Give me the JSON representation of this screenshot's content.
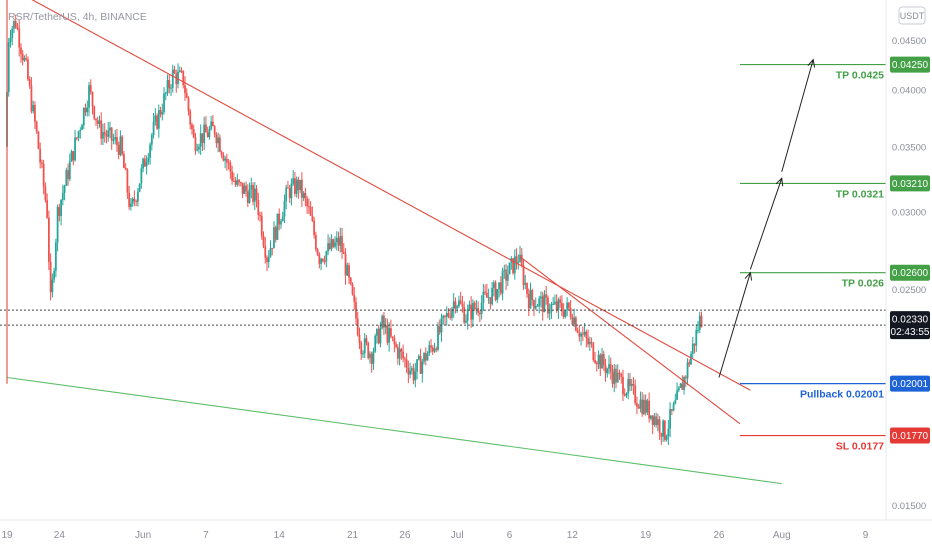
{
  "chart_data": {
    "type": "candlestick",
    "symbol_line": "RSR/TetherUS, 4h, BINANCE",
    "currency_badge": "USDT",
    "price_scale": "log",
    "ylim": [
      0.0145,
      0.0495
    ],
    "x_date_range": [
      "2021-05-19",
      "2021-08-10"
    ],
    "y_ticks": [
      "0.04500",
      "0.04000",
      "0.03500",
      "0.03000",
      "0.02500",
      "0.02000",
      "0.01500"
    ],
    "x_ticks": [
      {
        "label": "19",
        "date": "2021-05-19"
      },
      {
        "label": "24",
        "date": "2021-05-24"
      },
      {
        "label": "Jun",
        "date": "2021-06-01"
      },
      {
        "label": "7",
        "date": "2021-06-07"
      },
      {
        "label": "14",
        "date": "2021-06-14"
      },
      {
        "label": "21",
        "date": "2021-06-21"
      },
      {
        "label": "26",
        "date": "2021-06-26"
      },
      {
        "label": "Jul",
        "date": "2021-07-01"
      },
      {
        "label": "6",
        "date": "2021-07-06"
      },
      {
        "label": "12",
        "date": "2021-07-12"
      },
      {
        "label": "19",
        "date": "2021-07-19"
      },
      {
        "label": "26",
        "date": "2021-07-26"
      },
      {
        "label": "Aug",
        "date": "2021-08-01"
      },
      {
        "label": "9",
        "date": "2021-08-09"
      }
    ],
    "price_anchors": [
      [
        "2021-05-19",
        0.035
      ],
      [
        "2021-05-19",
        0.046
      ],
      [
        "2021-05-20",
        0.047
      ],
      [
        "2021-05-21",
        0.042
      ],
      [
        "2021-05-22",
        0.036
      ],
      [
        "2021-05-23",
        0.03
      ],
      [
        "2021-05-23",
        0.024
      ],
      [
        "2021-05-24",
        0.03
      ],
      [
        "2021-05-25",
        0.033
      ],
      [
        "2021-05-27",
        0.04
      ],
      [
        "2021-05-28",
        0.0365
      ],
      [
        "2021-05-30",
        0.035
      ],
      [
        "2021-05-31",
        0.03
      ],
      [
        "2021-06-02",
        0.036
      ],
      [
        "2021-06-04",
        0.0415
      ],
      [
        "2021-06-05",
        0.041
      ],
      [
        "2021-06-06",
        0.0355
      ],
      [
        "2021-06-08",
        0.0365
      ],
      [
        "2021-06-10",
        0.032
      ],
      [
        "2021-06-12",
        0.031
      ],
      [
        "2021-06-13",
        0.027
      ],
      [
        "2021-06-15",
        0.0315
      ],
      [
        "2021-06-16",
        0.032
      ],
      [
        "2021-06-17",
        0.03
      ],
      [
        "2021-06-18",
        0.027
      ],
      [
        "2021-06-20",
        0.028
      ],
      [
        "2021-06-22",
        0.022
      ],
      [
        "2021-06-23",
        0.0215
      ],
      [
        "2021-06-24",
        0.023
      ],
      [
        "2021-06-25",
        0.022
      ],
      [
        "2021-06-27",
        0.0205
      ],
      [
        "2021-06-29",
        0.022
      ],
      [
        "2021-07-01",
        0.0245
      ],
      [
        "2021-07-02",
        0.0235
      ],
      [
        "2021-07-04",
        0.0245
      ],
      [
        "2021-07-05",
        0.025
      ],
      [
        "2021-07-06",
        0.026
      ],
      [
        "2021-07-07",
        0.027
      ],
      [
        "2021-07-08",
        0.0245
      ],
      [
        "2021-07-10",
        0.024
      ],
      [
        "2021-07-12",
        0.0238
      ],
      [
        "2021-07-13",
        0.0225
      ],
      [
        "2021-07-15",
        0.021
      ],
      [
        "2021-07-17",
        0.02
      ],
      [
        "2021-07-19",
        0.019
      ],
      [
        "2021-07-20",
        0.0185
      ],
      [
        "2021-07-21",
        0.0178
      ],
      [
        "2021-07-22",
        0.019
      ],
      [
        "2021-07-23",
        0.0205
      ],
      [
        "2021-07-24",
        0.0225
      ],
      [
        "2021-07-24",
        0.0233
      ]
    ],
    "trendlines": [
      {
        "name": "descending-resistance",
        "color": "#e04a3f",
        "from": [
          "2021-05-21",
          0.0498
        ],
        "to": [
          "2021-07-29",
          0.0197
        ]
      },
      {
        "name": "inner-resistance",
        "color": "#e04a3f",
        "from": [
          "2021-07-07",
          0.027
        ],
        "to": [
          "2021-07-28",
          0.0182
        ]
      },
      {
        "name": "support",
        "color": "#5cbf69",
        "from": [
          "2021-05-19",
          0.0203
        ],
        "to": [
          "2021-08-01",
          0.0158
        ]
      },
      {
        "name": "vertical-marker",
        "color": "#e04a3f",
        "from": [
          "2021-05-19",
          0.0495
        ],
        "to": [
          "2021-05-19",
          0.02
        ]
      }
    ],
    "levels": [
      {
        "name": "tp3",
        "label": "TP 0.0425",
        "badge": "0.04250",
        "value": 0.0425,
        "color": "#43a047",
        "from": "2021-07-28"
      },
      {
        "name": "tp2",
        "label": "TP 0.0321",
        "badge": "0.03210",
        "value": 0.0321,
        "color": "#43a047",
        "from": "2021-07-28"
      },
      {
        "name": "tp1",
        "label": "TP 0.026",
        "badge": "0.02600",
        "value": 0.026,
        "color": "#43a047",
        "from": "2021-07-28"
      },
      {
        "name": "pullback",
        "label": "Pullback 0.02001",
        "badge": "0.02001",
        "value": 0.02001,
        "color": "#1e63d6",
        "from": "2021-07-28"
      },
      {
        "name": "sl",
        "label": "SL 0.0177",
        "badge": "0.01770",
        "value": 0.0177,
        "color": "#e53935",
        "from": "2021-07-28"
      }
    ],
    "current_price": {
      "badge": "0.02330",
      "countdown": "02:43:55",
      "value": 0.0233
    },
    "reference_line": {
      "value": 0.0238
    },
    "arrows": [
      {
        "from": [
          "2021-07-26",
          0.0203
        ],
        "to": [
          "2021-07-29",
          0.026
        ]
      },
      {
        "from": [
          "2021-07-29",
          0.0262
        ],
        "to": [
          "2021-08-01",
          0.0325
        ]
      },
      {
        "from": [
          "2021-08-01",
          0.033
        ],
        "to": [
          "2021-08-04",
          0.043
        ]
      }
    ]
  }
}
